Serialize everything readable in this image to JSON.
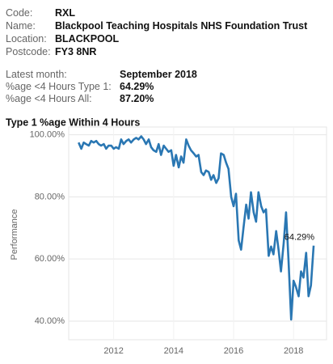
{
  "info": {
    "rows": [
      {
        "label": "Code:",
        "value": "RXL"
      },
      {
        "label": "Name:",
        "value": "Blackpool Teaching Hospitals NHS Foundation Trust"
      },
      {
        "label": "Location:",
        "value": "BLACKPOOL"
      },
      {
        "label": "Postcode:",
        "value": "FY3 8NR"
      }
    ],
    "stats": [
      {
        "label": "Latest month:",
        "value": "September 2018"
      },
      {
        "label": "%age <4 Hours Type 1:",
        "value": "64.29%"
      },
      {
        "label": "%age <4 Hours All:",
        "value": "87.20%"
      }
    ]
  },
  "chart_data": {
    "type": "line",
    "title": "Type 1 %age Within 4 Hours",
    "y_label": "Performance",
    "annotation": "64.29%",
    "xlim": [
      2010.5,
      2019.1
    ],
    "xticks": [
      2012,
      2014,
      2016,
      2018
    ],
    "ylim": [
      34,
      102.5
    ],
    "yticks": [
      {
        "value": 40,
        "label": "40.00%"
      },
      {
        "value": 60,
        "label": "60.00%"
      },
      {
        "value": 80,
        "label": "80.00%"
      },
      {
        "value": 100,
        "label": "100.00%"
      }
    ],
    "grid": true,
    "x": [
      2010.83,
      2010.92,
      2011.0,
      2011.08,
      2011.17,
      2011.25,
      2011.33,
      2011.42,
      2011.5,
      2011.58,
      2011.67,
      2011.75,
      2011.83,
      2011.92,
      2012.0,
      2012.08,
      2012.17,
      2012.25,
      2012.33,
      2012.42,
      2012.5,
      2012.58,
      2012.67,
      2012.75,
      2012.83,
      2012.92,
      2013.0,
      2013.08,
      2013.17,
      2013.25,
      2013.33,
      2013.42,
      2013.5,
      2013.58,
      2013.67,
      2013.75,
      2013.83,
      2013.92,
      2014.0,
      2014.08,
      2014.17,
      2014.25,
      2014.33,
      2014.42,
      2014.5,
      2014.58,
      2014.67,
      2014.75,
      2014.83,
      2014.92,
      2015.0,
      2015.08,
      2015.17,
      2015.25,
      2015.33,
      2015.42,
      2015.5,
      2015.58,
      2015.67,
      2015.75,
      2015.83,
      2015.92,
      2016.0,
      2016.08,
      2016.17,
      2016.25,
      2016.33,
      2016.42,
      2016.5,
      2016.58,
      2016.67,
      2016.75,
      2016.83,
      2016.92,
      2017.0,
      2017.08,
      2017.17,
      2017.25,
      2017.33,
      2017.42,
      2017.5,
      2017.58,
      2017.67,
      2017.75,
      2017.83,
      2017.92,
      2018.0,
      2018.08,
      2018.17,
      2018.25,
      2018.33,
      2018.42,
      2018.5,
      2018.58,
      2018.67
    ],
    "series": [
      {
        "name": "Type 1",
        "color": "#2a77b3",
        "values": [
          97.5,
          95.5,
          97.5,
          97,
          96.5,
          98,
          97.5,
          98,
          97,
          96.5,
          97,
          95.5,
          96.5,
          96.5,
          95.5,
          96,
          95.5,
          98.5,
          97,
          98,
          98.5,
          97.5,
          98.5,
          99,
          98.5,
          99.5,
          98.5,
          97,
          98.5,
          96,
          95,
          94.5,
          97,
          93.5,
          96.5,
          95.5,
          94.5,
          95,
          90,
          93.5,
          89.5,
          93,
          91,
          98.5,
          96.5,
          95,
          94,
          93,
          93.5,
          88,
          87,
          88.5,
          88,
          85.5,
          87,
          84.5,
          86,
          94,
          93.5,
          91,
          89,
          80,
          77,
          81,
          66,
          63,
          70,
          77.5,
          73,
          81.5,
          75,
          72,
          81.5,
          77,
          75,
          76,
          61,
          64,
          61.5,
          69,
          63,
          56,
          65,
          75,
          60,
          40.5,
          53,
          51,
          48,
          56,
          54,
          62,
          48,
          51.5,
          64.29
        ]
      }
    ]
  }
}
